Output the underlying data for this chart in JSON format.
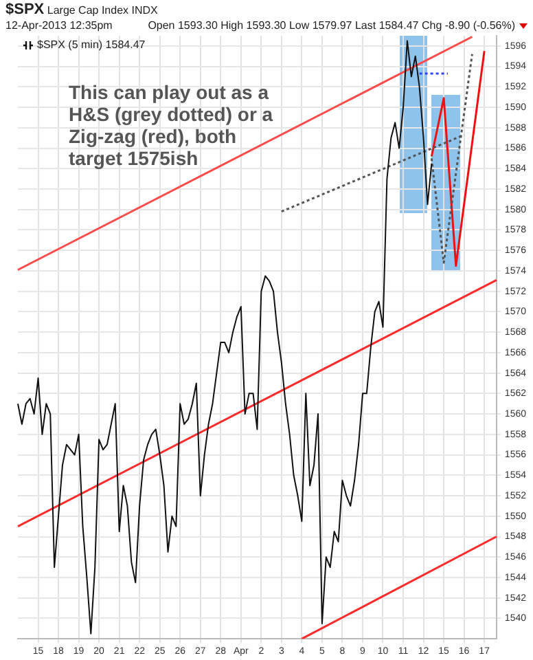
{
  "chart_data": {
    "type": "line",
    "title": "$SPX",
    "subtitle": "Large Cap Index INDX",
    "annotations": [
      "12-Apr-2013 12:35pm",
      "Open 1593.30 High 1593.30 Low 1579.97 Last 1584.47 Chg -8.90 (-0.56%)",
      "This can play out as a H&S (grey dotted) or a Zig-zag (red), both target 1575ish"
    ],
    "categories": [
      null,
      null,
      null,
      null,
      null,
      "15",
      null,
      null,
      null,
      null,
      "18",
      null,
      null,
      null,
      null,
      "19",
      null,
      null,
      null,
      null,
      "20",
      null,
      null,
      null,
      null,
      "21",
      null,
      null,
      null,
      null,
      "22",
      null,
      null,
      null,
      null,
      "25",
      null,
      null,
      null,
      null,
      "26",
      null,
      null,
      null,
      null,
      "27",
      null,
      null,
      null,
      null,
      "28",
      null,
      null,
      null,
      null,
      "Apr",
      null,
      null,
      null,
      null,
      "2",
      null,
      null,
      null,
      null,
      "3",
      null,
      null,
      null,
      null,
      "4",
      null,
      null,
      null,
      null,
      "5",
      null,
      null,
      null,
      null,
      "8",
      null,
      null,
      null,
      null,
      "9",
      null,
      null,
      null,
      null,
      "10",
      null,
      null,
      null,
      null,
      "11",
      null,
      null,
      null,
      null,
      "12",
      null,
      null,
      null,
      null,
      "15",
      null,
      null,
      null,
      null,
      "16",
      null,
      null,
      null,
      null,
      "17",
      null,
      null,
      null
    ],
    "ylim": [
      1538,
      1597
    ],
    "yticks": [
      1540,
      1542,
      1544,
      1546,
      1548,
      1550,
      1552,
      1554,
      1556,
      1558,
      1560,
      1562,
      1564,
      1566,
      1568,
      1570,
      1572,
      1574,
      1576,
      1578,
      1580,
      1582,
      1584,
      1586,
      1588,
      1590,
      1592,
      1594,
      1596
    ],
    "grid": true,
    "legend": "top left",
    "marker": "none",
    "series": [
      {
        "name": "$SPX (5 min) 1584.47",
        "color": "#111111",
        "values": [
          1561,
          1559,
          1561,
          1561.5,
          1560,
          1563.5,
          1558,
          1561,
          1560,
          1545,
          1550,
          1555,
          1557,
          1556.5,
          1556,
          1558,
          1549,
          1544,
          1538.5,
          1545,
          1557.5,
          1556.5,
          1557,
          1559,
          1561,
          1548.5,
          1553,
          1551,
          1545.5,
          1543.5,
          1551,
          1555.5,
          1557,
          1558,
          1558.5,
          1556,
          1553,
          1546.5,
          1550,
          1549,
          1561,
          1559,
          1559.5,
          1561,
          1563,
          1552,
          1556,
          1559,
          1561,
          1564,
          1567,
          1567,
          1566,
          1568,
          1569.5,
          1570.5,
          1560,
          1562,
          1562,
          1558.5,
          1572,
          1573.5,
          1573,
          1572,
          1568,
          1565,
          1561,
          1558,
          1554,
          1552,
          1549.5,
          1562,
          1553,
          1555,
          1560,
          1539.5,
          1546,
          1545,
          1548.5,
          1547.5,
          1553.5,
          1552,
          1551,
          1553.5,
          1557,
          1562,
          1562,
          1566.5,
          1570,
          1571,
          1568.5,
          1583,
          1587,
          1588.5,
          1586,
          1590,
          1596.5,
          1593,
          1595,
          1592,
          1587,
          1580.5,
          1584.5,
          null,
          null,
          null,
          null,
          null,
          null,
          null,
          null,
          null,
          null,
          null,
          null,
          null,
          null,
          null,
          null
        ]
      },
      {
        "type": "line",
        "color": "#ff4a4a",
        "values": [
          1574.1,
          null,
          null,
          null,
          null,
          null,
          null,
          null,
          null,
          null,
          null,
          null,
          null,
          null,
          null,
          null,
          null,
          null,
          null,
          null,
          null,
          null,
          null,
          null,
          null,
          null,
          null,
          null,
          null,
          null,
          null,
          null,
          null,
          null,
          null,
          null,
          null,
          null,
          null,
          null,
          null,
          null,
          null,
          null,
          null,
          null,
          null,
          null,
          null,
          null,
          null,
          null,
          null,
          null,
          null,
          null,
          null,
          null,
          null,
          null,
          null,
          null,
          null,
          null,
          null,
          null,
          null,
          null,
          null,
          null,
          null,
          null,
          null,
          null,
          null,
          null,
          null,
          null,
          null,
          null,
          null,
          null,
          null,
          null,
          null,
          null,
          null,
          null,
          null,
          null,
          null,
          null,
          null,
          null,
          null,
          null,
          null,
          null,
          null,
          null,
          null,
          null,
          null,
          null,
          null,
          null,
          null,
          null,
          null,
          null,
          null,
          null,
          1596.9,
          null,
          null,
          null,
          null,
          null,
          null
        ]
      },
      {
        "type": "line",
        "color": "#ff2a2a",
        "values": [
          1549,
          null,
          null,
          null,
          null,
          null,
          null,
          null,
          null,
          null,
          null,
          null,
          null,
          null,
          null,
          null,
          null,
          null,
          null,
          null,
          null,
          null,
          null,
          null,
          null,
          null,
          null,
          null,
          null,
          null,
          null,
          null,
          null,
          null,
          null,
          null,
          null,
          null,
          null,
          null,
          null,
          null,
          null,
          null,
          null,
          null,
          null,
          null,
          null,
          null,
          null,
          null,
          null,
          null,
          null,
          null,
          null,
          null,
          null,
          null,
          null,
          null,
          null,
          null,
          null,
          null,
          null,
          null,
          null,
          null,
          null,
          null,
          null,
          null,
          null,
          null,
          null,
          null,
          null,
          null,
          null,
          null,
          null,
          null,
          null,
          null,
          null,
          null,
          null,
          null,
          null,
          null,
          null,
          null,
          null,
          null,
          null,
          null,
          null,
          null,
          null,
          null,
          null,
          null,
          null,
          null,
          null,
          null,
          null,
          null,
          null,
          null,
          null,
          null,
          null,
          null,
          null,
          null,
          1573.1
        ]
      },
      {
        "type": "line",
        "color": "#ff2a2a",
        "values": [
          null,
          null,
          null,
          null,
          null,
          null,
          null,
          null,
          null,
          null,
          null,
          null,
          null,
          null,
          null,
          null,
          null,
          null,
          null,
          null,
          null,
          null,
          null,
          null,
          null,
          null,
          null,
          null,
          null,
          null,
          null,
          null,
          null,
          null,
          null,
          null,
          null,
          null,
          null,
          null,
          null,
          null,
          null,
          null,
          null,
          null,
          null,
          null,
          null,
          null,
          null,
          null,
          null,
          null,
          null,
          null,
          null,
          null,
          null,
          null,
          null,
          null,
          null,
          null,
          null,
          null,
          null,
          null,
          null,
          null,
          1538,
          null,
          null,
          null,
          null,
          null,
          null,
          null,
          null,
          null,
          null,
          null,
          null,
          null,
          null,
          null,
          null,
          null,
          null,
          null,
          null,
          null,
          null,
          null,
          null,
          null,
          null,
          null,
          null,
          null,
          null,
          null,
          null,
          null,
          null,
          null,
          null,
          null,
          null,
          null,
          null,
          null,
          null,
          null,
          null,
          null,
          null,
          null,
          1548
        ]
      },
      {
        "type": "line",
        "color": "#555555",
        "line_style": "dotted",
        "values": [
          null,
          null,
          null,
          null,
          null,
          null,
          null,
          null,
          null,
          null,
          null,
          null,
          null,
          null,
          null,
          null,
          null,
          null,
          null,
          null,
          null,
          null,
          null,
          null,
          null,
          null,
          null,
          null,
          null,
          null,
          null,
          null,
          null,
          null,
          null,
          null,
          null,
          null,
          null,
          null,
          null,
          null,
          null,
          null,
          null,
          null,
          null,
          null,
          null,
          null,
          null,
          null,
          null,
          null,
          null,
          null,
          null,
          null,
          null,
          null,
          null,
          null,
          null,
          null,
          null,
          1579.8,
          null,
          null,
          null,
          null,
          null,
          null,
          null,
          null,
          null,
          null,
          null,
          null,
          null,
          null,
          null,
          null,
          null,
          null,
          null,
          null,
          null,
          null,
          null,
          null,
          null,
          null,
          null,
          null,
          null,
          null,
          null,
          null,
          null,
          null,
          null,
          null,
          null,
          null,
          null,
          null,
          null,
          null,
          null,
          null,
          1587.3,
          null,
          null,
          null,
          null,
          null,
          null,
          null,
          null
        ]
      },
      {
        "type": "line",
        "color": "#555555",
        "line_style": "dotted",
        "values": [
          null,
          null,
          null,
          null,
          null,
          null,
          null,
          null,
          null,
          null,
          null,
          null,
          null,
          null,
          null,
          null,
          null,
          null,
          null,
          null,
          null,
          null,
          null,
          null,
          null,
          null,
          null,
          null,
          null,
          null,
          null,
          null,
          null,
          null,
          null,
          null,
          null,
          null,
          null,
          null,
          null,
          null,
          null,
          null,
          null,
          null,
          null,
          null,
          null,
          null,
          null,
          null,
          null,
          null,
          null,
          null,
          null,
          null,
          null,
          null,
          null,
          null,
          null,
          null,
          null,
          null,
          null,
          null,
          null,
          null,
          null,
          null,
          null,
          null,
          null,
          null,
          null,
          null,
          null,
          null,
          null,
          null,
          null,
          null,
          null,
          null,
          null,
          null,
          null,
          null,
          null,
          null,
          null,
          null,
          null,
          null,
          null,
          null,
          null,
          null,
          null,
          null,
          1585,
          null,
          null,
          1574.8,
          null,
          null,
          null,
          null,
          null,
          null,
          1595.2,
          null,
          null,
          null,
          null,
          null,
          null
        ]
      },
      {
        "type": "line",
        "color": "#ee1111",
        "values": [
          null,
          null,
          null,
          null,
          null,
          null,
          null,
          null,
          null,
          null,
          null,
          null,
          null,
          null,
          null,
          null,
          null,
          null,
          null,
          null,
          null,
          null,
          null,
          null,
          null,
          null,
          null,
          null,
          null,
          null,
          null,
          null,
          null,
          null,
          null,
          null,
          null,
          null,
          null,
          null,
          null,
          null,
          null,
          null,
          null,
          null,
          null,
          null,
          null,
          null,
          null,
          null,
          null,
          null,
          null,
          null,
          null,
          null,
          null,
          null,
          null,
          null,
          null,
          null,
          null,
          null,
          null,
          null,
          null,
          null,
          null,
          null,
          null,
          null,
          null,
          null,
          null,
          null,
          null,
          null,
          null,
          null,
          null,
          null,
          null,
          null,
          null,
          null,
          null,
          null,
          null,
          null,
          null,
          null,
          null,
          null,
          null,
          null,
          null,
          null,
          null,
          null,
          1585.2,
          null,
          null,
          1590.9,
          null,
          null,
          1574.5,
          null,
          null,
          null,
          null,
          null,
          null,
          1595.5,
          null,
          null,
          null
        ]
      },
      {
        "type": "line",
        "color": "#3344ff",
        "line_style": "dotted",
        "values": [
          null,
          null,
          null,
          null,
          null,
          null,
          null,
          null,
          null,
          null,
          null,
          null,
          null,
          null,
          null,
          null,
          null,
          null,
          null,
          null,
          null,
          null,
          null,
          null,
          null,
          null,
          null,
          null,
          null,
          null,
          null,
          null,
          null,
          null,
          null,
          null,
          null,
          null,
          null,
          null,
          null,
          null,
          null,
          null,
          null,
          null,
          null,
          null,
          null,
          null,
          null,
          null,
          null,
          null,
          null,
          null,
          null,
          null,
          null,
          null,
          null,
          null,
          null,
          null,
          null,
          null,
          null,
          null,
          null,
          null,
          null,
          null,
          null,
          null,
          null,
          null,
          null,
          null,
          null,
          null,
          null,
          null,
          null,
          null,
          null,
          null,
          null,
          null,
          null,
          null,
          null,
          null,
          null,
          null,
          null,
          null,
          null,
          null,
          null,
          1593.3,
          null,
          null,
          null,
          null,
          null,
          null,
          1593.3,
          null,
          null,
          null,
          null,
          null,
          null,
          null,
          null,
          null,
          null,
          null,
          null
        ]
      }
    ]
  }
}
